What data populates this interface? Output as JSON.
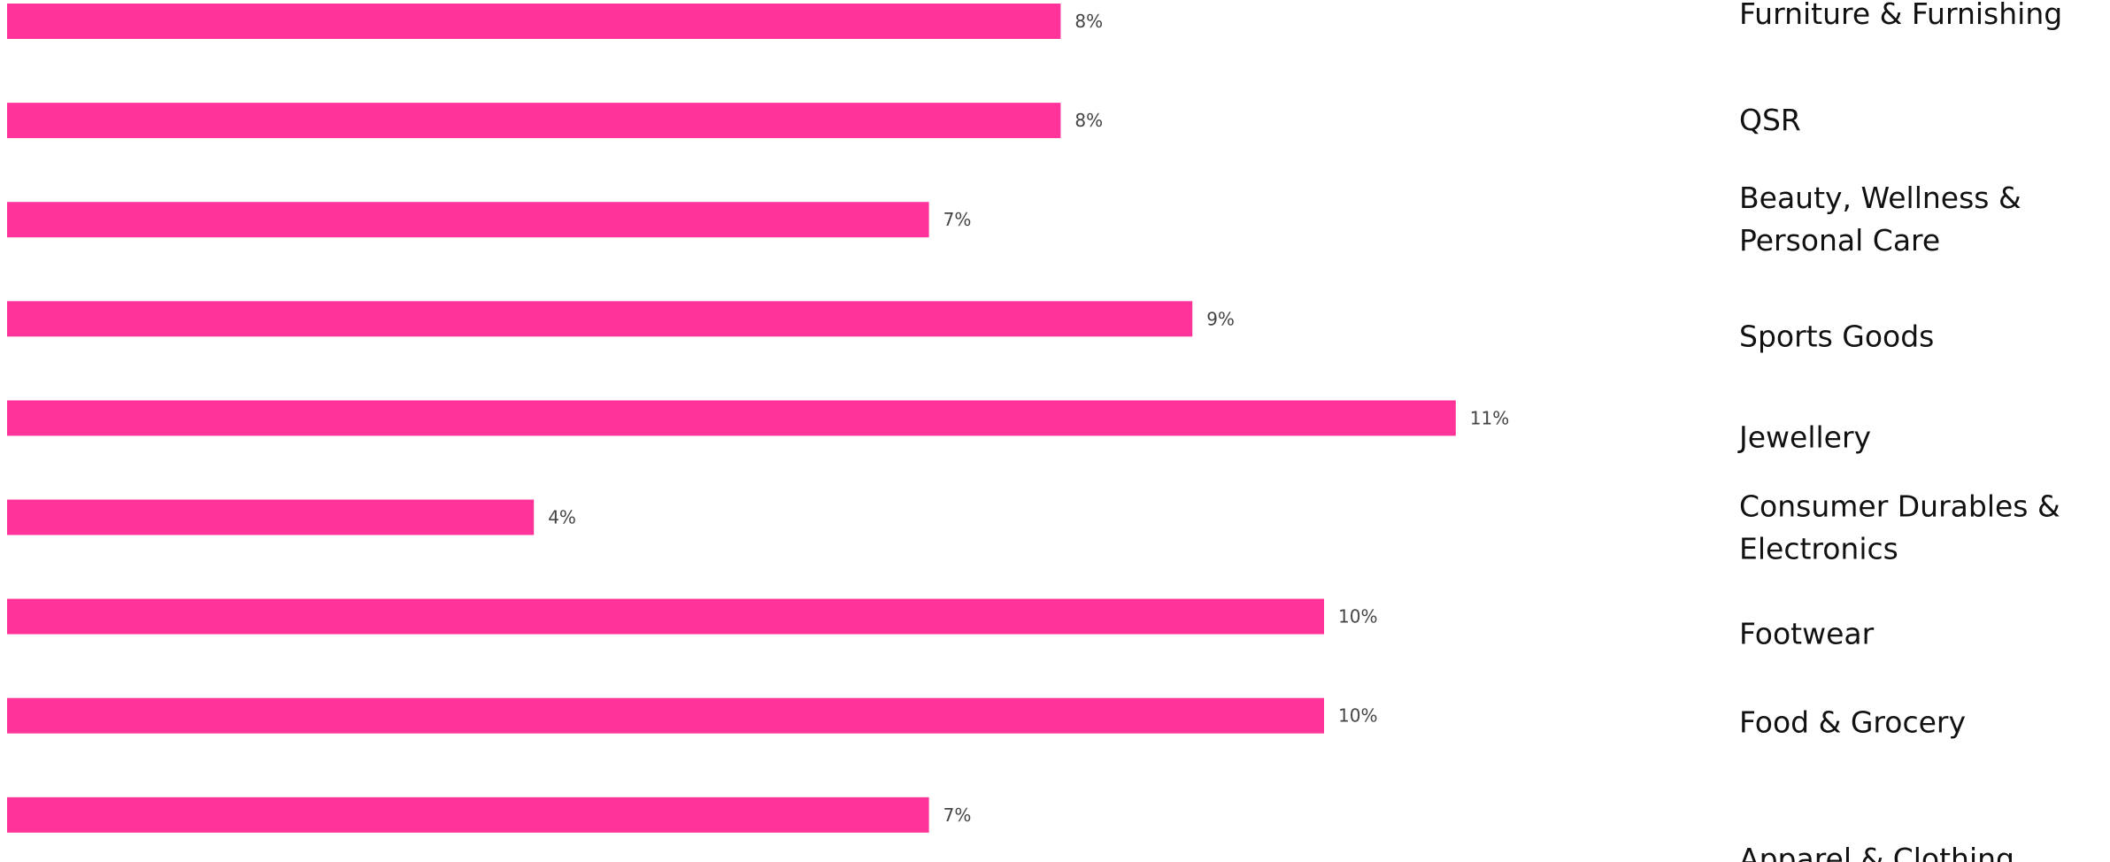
{
  "chart_data": {
    "type": "bar",
    "orientation": "horizontal",
    "categories": [
      "Furniture &  Furnishing",
      "QSR",
      "Beauty, Wellness & Personal Care",
      "Sports Goods",
      "Jewellery",
      "Consumer Durables & Electronics",
      "Footwear",
      "Food & Grocery",
      "Apparel & Clothing"
    ],
    "category_lines": [
      [
        "Furniture &  Furnishing"
      ],
      [
        "QSR"
      ],
      [
        "Beauty, Wellness &",
        "Personal Care"
      ],
      [
        "Sports Goods"
      ],
      [
        "Jewellery"
      ],
      [
        "Consumer Durables &",
        "Electronics"
      ],
      [
        "Footwear"
      ],
      [
        "Food & Grocery"
      ],
      [
        "Apparel & Clothing"
      ]
    ],
    "values": [
      8,
      8,
      7,
      9,
      11,
      4,
      10,
      10,
      7
    ],
    "value_labels": [
      "8%",
      "8%",
      "7%",
      "9%",
      "11%",
      "4%",
      "10%",
      "10%",
      "7%"
    ],
    "value_axis_unit": "%",
    "xlim": [
      0,
      11
    ],
    "grid": false,
    "legend": "none",
    "bar_color": "#FF3399",
    "title": "",
    "xlabel": "",
    "ylabel": ""
  }
}
